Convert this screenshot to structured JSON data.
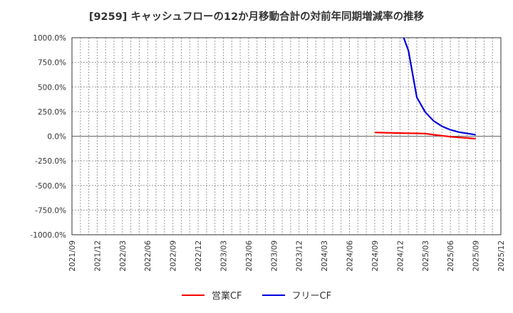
{
  "title": "[9259]  キャッシュフローの12か月移動合計の対前年同期増減率の推移",
  "legend": [
    {
      "label": "営業CF",
      "color": "#ff0000"
    },
    {
      "label": "フリーCF",
      "color": "#0000dd"
    }
  ],
  "chart_data": {
    "type": "line",
    "title": "[9259]  キャッシュフローの12か月移動合計の対前年同期増減率の推移",
    "xlabel": "",
    "ylabel": "",
    "ylim": [
      -1000,
      1000
    ],
    "yticks": [
      "1000.0%",
      "750.0%",
      "500.0%",
      "250.0%",
      "0.0%",
      "-250.0%",
      "-500.0%",
      "-750.0%",
      "-1000.0%"
    ],
    "xticks": [
      "2021/09",
      "2021/12",
      "2022/03",
      "2022/06",
      "2022/09",
      "2022/12",
      "2023/03",
      "2023/06",
      "2023/09",
      "2023/12",
      "2024/03",
      "2024/06",
      "2024/09",
      "2024/12",
      "2025/03",
      "2025/06",
      "2025/09",
      "2025/12"
    ],
    "grid": true,
    "legend_position": "bottom",
    "series": [
      {
        "name": "営業CF",
        "color": "#ff0000",
        "points": [
          {
            "x": "2024/09",
            "y": 38
          },
          {
            "x": "2024/10",
            "y": 36
          },
          {
            "x": "2024/11",
            "y": 34
          },
          {
            "x": "2024/12",
            "y": 32
          },
          {
            "x": "2025/01",
            "y": 30
          },
          {
            "x": "2025/02",
            "y": 29
          },
          {
            "x": "2025/03",
            "y": 27
          },
          {
            "x": "2025/04",
            "y": 15
          },
          {
            "x": "2025/05",
            "y": 5
          },
          {
            "x": "2025/06",
            "y": -5
          },
          {
            "x": "2025/07",
            "y": -12
          },
          {
            "x": "2025/08",
            "y": -18
          },
          {
            "x": "2025/09",
            "y": -25
          }
        ]
      },
      {
        "name": "フリーCF",
        "color": "#0000dd",
        "points": [
          {
            "x": "2024/12",
            "y": 1100
          },
          {
            "x": "2025/01",
            "y": 870
          },
          {
            "x": "2025/02",
            "y": 395
          },
          {
            "x": "2025/03",
            "y": 245
          },
          {
            "x": "2025/04",
            "y": 155
          },
          {
            "x": "2025/05",
            "y": 100
          },
          {
            "x": "2025/06",
            "y": 65
          },
          {
            "x": "2025/07",
            "y": 42
          },
          {
            "x": "2025/08",
            "y": 28
          },
          {
            "x": "2025/09",
            "y": 15
          }
        ]
      }
    ]
  }
}
